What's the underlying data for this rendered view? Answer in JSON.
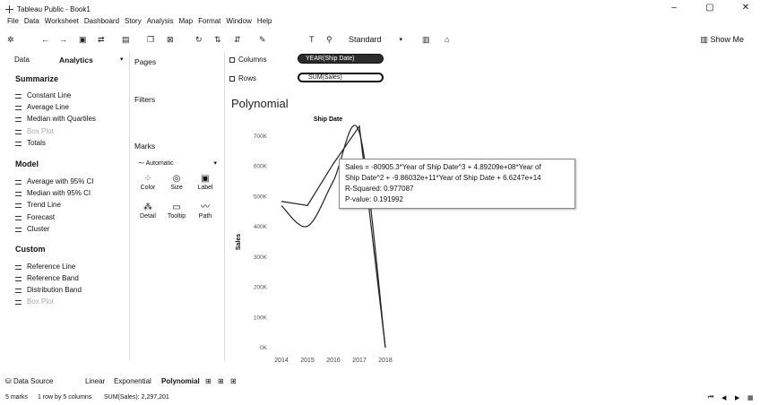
{
  "window": {
    "title": "Tableau Public - Book1",
    "controls": [
      "–",
      "▢",
      "✕"
    ]
  },
  "menu": [
    "File",
    "Data",
    "Worksheet",
    "Dashboard",
    "Story",
    "Analysis",
    "Map",
    "Format",
    "Window",
    "Help"
  ],
  "toolbar": {
    "fit_select": "Standard",
    "show_me": "Show Me"
  },
  "left_panel": {
    "tab_data": "Data",
    "tab_analytics": "Analytics",
    "summarize_header": "Summarize",
    "summarize_items": [
      "Constant Line",
      "Average Line",
      "Median with Quartiles",
      "Box Plot",
      "Totals"
    ],
    "model_header": "Model",
    "model_items": [
      "Average with 95% CI",
      "Median with 95% CI",
      "Trend Line",
      "Forecast",
      "Cluster"
    ],
    "custom_header": "Custom",
    "custom_items": [
      "Reference Line",
      "Reference Band",
      "Distribution Band",
      "Box Plot"
    ]
  },
  "cards": {
    "pages": "Pages",
    "filters": "Filters",
    "marks": "Marks",
    "marks_type": "Automatic",
    "mark_buttons": [
      "Color",
      "Size",
      "Label",
      "Detail",
      "Tooltip",
      "Path"
    ]
  },
  "shelves": {
    "columns_label": "Columns",
    "rows_label": "Rows",
    "columns_pill": "YEAR(Ship Date)",
    "rows_pill": "SUM(Sales)"
  },
  "sheet": {
    "title": "Polynomial"
  },
  "chart_data": {
    "type": "line",
    "title": "Ship Date",
    "xlabel": "",
    "ylabel": "Sales",
    "x": [
      "2014",
      "2015",
      "2016",
      "2017",
      "2018"
    ],
    "y_ticks": [
      "0K",
      "100K",
      "200K",
      "300K",
      "400K",
      "500K",
      "600K",
      "700K"
    ],
    "ylim": [
      0,
      700000
    ],
    "series": [
      {
        "values": [
          484247,
          470533,
          609206,
          733215,
          0
        ]
      }
    ],
    "trend_values": [
      470000,
      402000,
      552000,
      712000,
      0
    ],
    "grid": false,
    "colors": {
      "line": "#222222"
    }
  },
  "tooltip": {
    "line1": "Sales = -80905.3*Year of Ship Date^3 + 4.89209e+08*Year of",
    "line2": "Ship Date^2 + -9.86032e+11*Year of Ship Date + 6.6247e+14",
    "line3": "R-Squared: 0.977087",
    "line4": "P-value: 0.191992"
  },
  "sheet_tabs": {
    "data_source": "Data Source",
    "tabs": [
      "Linear",
      "Exponential",
      "Polynomial"
    ]
  },
  "status": {
    "marks": "5 marks",
    "dims": "1 row by 5 columns",
    "sum": "SUM(Sales): 2,297,201"
  }
}
